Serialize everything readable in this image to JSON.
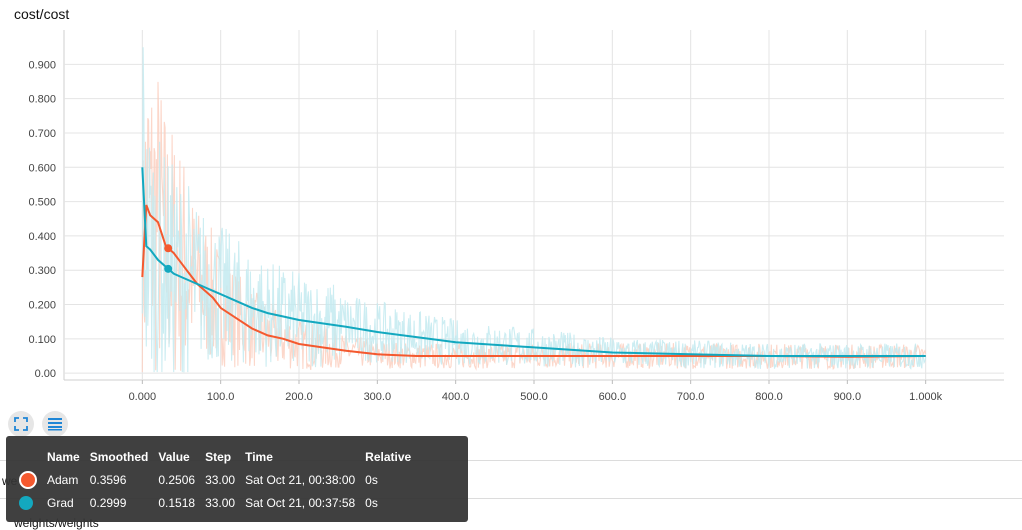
{
  "title": "cost/cost",
  "chart_data": {
    "type": "line",
    "xlim": [
      -100,
      1100
    ],
    "ylim": [
      -0.02,
      1.0
    ],
    "y_ticks": [
      0.0,
      0.1,
      0.2,
      0.3,
      0.4,
      0.5,
      0.6,
      0.7,
      0.8,
      0.9
    ],
    "y_tick_labels": [
      "0.00",
      "0.100",
      "0.200",
      "0.300",
      "0.400",
      "0.500",
      "0.600",
      "0.700",
      "0.800",
      "0.900"
    ],
    "x_ticks": [
      0,
      100,
      200,
      300,
      400,
      500,
      600,
      700,
      800,
      900,
      1000
    ],
    "x_tick_labels": [
      "0.000",
      "100.0",
      "200.0",
      "300.0",
      "400.0",
      "500.0",
      "600.0",
      "700.0",
      "800.0",
      "900.0",
      "1.000k"
    ],
    "grid": true,
    "series": [
      {
        "name": "Adam",
        "color": "#f4592f",
        "raw_color": "#fbd0c1",
        "x": [
          0,
          5,
          10,
          20,
          30,
          40,
          50,
          60,
          70,
          80,
          90,
          100,
          120,
          140,
          160,
          180,
          200,
          230,
          260,
          300,
          350,
          400,
          500,
          600,
          700,
          800,
          900,
          1000
        ],
        "smoothed": [
          0.28,
          0.49,
          0.46,
          0.44,
          0.37,
          0.35,
          0.32,
          0.29,
          0.26,
          0.24,
          0.22,
          0.19,
          0.16,
          0.13,
          0.11,
          0.1,
          0.085,
          0.075,
          0.065,
          0.055,
          0.05,
          0.05,
          0.05,
          0.05,
          0.05,
          0.05,
          0.048,
          0.05
        ]
      },
      {
        "name": "Grad",
        "color": "#13a8bf",
        "raw_color": "#c3eaf0",
        "x": [
          0,
          5,
          10,
          20,
          30,
          40,
          50,
          60,
          70,
          80,
          90,
          100,
          120,
          140,
          160,
          180,
          200,
          230,
          260,
          300,
          350,
          400,
          500,
          600,
          700,
          800,
          900,
          1000
        ],
        "smoothed": [
          0.6,
          0.37,
          0.36,
          0.33,
          0.31,
          0.29,
          0.28,
          0.27,
          0.26,
          0.25,
          0.24,
          0.23,
          0.21,
          0.19,
          0.175,
          0.165,
          0.155,
          0.145,
          0.135,
          0.12,
          0.105,
          0.09,
          0.075,
          0.06,
          0.055,
          0.05,
          0.05,
          0.05
        ]
      }
    ],
    "highlight_step": 33.0
  },
  "buttons": {
    "expand_icon": "expand-icon",
    "data_icon": "data-table-icon"
  },
  "behind_text": {
    "section_label": "we",
    "section_label_suffix": "t",
    "next_chart_title": "weights/weights"
  },
  "tooltip": {
    "headers": [
      "Name",
      "Smoothed",
      "Value",
      "Step",
      "Time",
      "Relative"
    ],
    "rows": [
      {
        "name": "Adam",
        "color": "#f4592f",
        "smoothed": "0.3596",
        "value": "0.2506",
        "step": "33.00",
        "time": "Sat Oct 21, 00:38:00",
        "relative": "0s"
      },
      {
        "name": "Grad",
        "color": "#13a8bf",
        "smoothed": "0.2999",
        "value": "0.1518",
        "step": "33.00",
        "time": "Sat Oct 21, 00:37:58",
        "relative": "0s"
      }
    ]
  }
}
